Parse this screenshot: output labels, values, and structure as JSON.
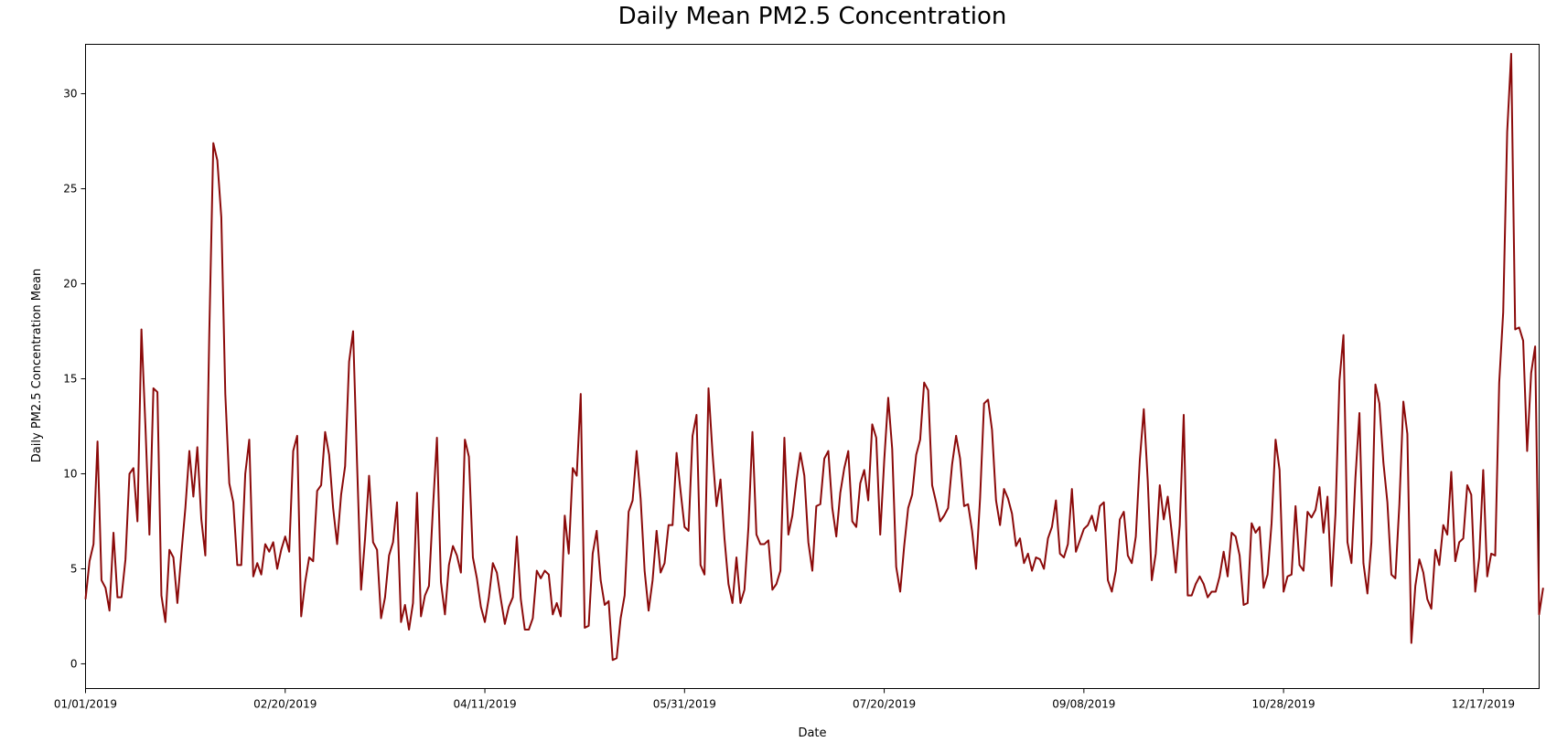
{
  "chart_data": {
    "type": "line",
    "title": "Daily Mean PM2.5 Concentration",
    "xlabel": "Date",
    "ylabel": "Daily PM2.5 Concentration Mean",
    "x_start": "01/01/2019",
    "x_end": "12/31/2019",
    "xlim": [
      "01/01/2019",
      "12/31/2019"
    ],
    "ylim": [
      -1.3,
      32.6
    ],
    "x_ticks": [
      "01/01/2019",
      "02/20/2019",
      "04/11/2019",
      "05/31/2019",
      "07/20/2019",
      "09/08/2019",
      "10/28/2019",
      "12/17/2019"
    ],
    "y_ticks": [
      0,
      5,
      10,
      15,
      20,
      25,
      30
    ],
    "grid": false,
    "line_color": "#8b0a0a",
    "series": [
      {
        "values": [
          3.4,
          5.4,
          6.3,
          11.7,
          4.4,
          4.0,
          2.8,
          6.9,
          3.5,
          3.5,
          5.5,
          10.0,
          10.3,
          7.5,
          17.6,
          12.5,
          6.8,
          14.5,
          14.3,
          3.6,
          2.2,
          6.0,
          5.6,
          3.2,
          5.8,
          8.2,
          11.2,
          8.8,
          11.4,
          7.6,
          5.7,
          17.5,
          27.4,
          26.5,
          23.5,
          14.2,
          9.5,
          8.5,
          5.2,
          5.2,
          10.0,
          11.8,
          4.6,
          5.3,
          4.7,
          6.3,
          5.9,
          6.4,
          5.0,
          6.0,
          6.7,
          5.9,
          11.2,
          12.0,
          2.5,
          4.3,
          5.6,
          5.4,
          9.1,
          9.4,
          12.2,
          11.0,
          8.2,
          6.3,
          8.9,
          10.4,
          15.9,
          17.5,
          10.5,
          3.9,
          6.6,
          9.9,
          6.4,
          6.0,
          2.4,
          3.5,
          5.7,
          6.4,
          8.5,
          2.2,
          3.1,
          1.8,
          3.2,
          9.0,
          2.5,
          3.6,
          4.1,
          8.2,
          11.9,
          4.3,
          2.6,
          5.2,
          6.2,
          5.7,
          4.8,
          11.8,
          10.9,
          5.6,
          4.5,
          3.0,
          2.2,
          3.5,
          5.3,
          4.8,
          3.4,
          2.1,
          3.0,
          3.5,
          6.7,
          3.4,
          1.8,
          1.8,
          2.4,
          4.9,
          4.5,
          4.9,
          4.7,
          2.6,
          3.2,
          2.5,
          7.8,
          5.8,
          10.3,
          9.9,
          14.2,
          1.9,
          2.0,
          5.8,
          7.0,
          4.4,
          3.1,
          3.3,
          0.2,
          0.3,
          2.4,
          3.6,
          8.0,
          8.6,
          11.2,
          8.7,
          4.9,
          2.8,
          4.4,
          7.0,
          4.8,
          5.3,
          7.3,
          7.3,
          11.1,
          9.1,
          7.2,
          7.0,
          12.0,
          13.1,
          5.2,
          4.7,
          14.5,
          11.1,
          8.3,
          9.7,
          6.6,
          4.2,
          3.2,
          5.6,
          3.2,
          3.9,
          7.2,
          12.2,
          6.8,
          6.3,
          6.3,
          6.5,
          3.9,
          4.2,
          4.9,
          11.9,
          6.8,
          7.8,
          9.6,
          11.1,
          9.9,
          6.4,
          4.9,
          8.3,
          8.4,
          10.8,
          11.2,
          8.2,
          6.7,
          9.0,
          10.3,
          11.2,
          7.5,
          7.2,
          9.5,
          10.2,
          8.6,
          12.6,
          11.9,
          6.8,
          10.7,
          14.0,
          11.3,
          5.1,
          3.8,
          6.2,
          8.2,
          8.9,
          11.0,
          11.8,
          14.8,
          14.4,
          9.4,
          8.5,
          7.5,
          7.8,
          8.2,
          10.5,
          12.0,
          10.8,
          8.3,
          8.4,
          7.0,
          5.0,
          8.7,
          13.7,
          13.9,
          12.3,
          8.6,
          7.3,
          9.2,
          8.7,
          7.9,
          6.2,
          6.6,
          5.3,
          5.8,
          4.9,
          5.6,
          5.5,
          5.0,
          6.6,
          7.2,
          8.6,
          5.8,
          5.6,
          6.3,
          9.2,
          5.9,
          6.5,
          7.1,
          7.3,
          7.8,
          7.0,
          8.3,
          8.5,
          4.4,
          3.8,
          4.9,
          7.6,
          8.0,
          5.7,
          5.3,
          6.7,
          10.7,
          13.4,
          9.6,
          4.4,
          5.8,
          9.4,
          7.6,
          8.8,
          6.9,
          4.8,
          7.3,
          13.1,
          3.6,
          3.6,
          4.2,
          4.6,
          4.2,
          3.5,
          3.8,
          3.8,
          4.6,
          5.9,
          4.6,
          6.9,
          6.7,
          5.7,
          3.1,
          3.2,
          7.4,
          6.9,
          7.2,
          4.0,
          4.7,
          7.4,
          11.8,
          10.2,
          3.8,
          4.6,
          4.7,
          8.3,
          5.2,
          4.9,
          8.0,
          7.7,
          8.1,
          9.3,
          6.9,
          8.8,
          4.1,
          7.9,
          14.9,
          17.3,
          6.4,
          5.3,
          9.8,
          13.2,
          5.3,
          3.7,
          6.4,
          14.7,
          13.7,
          10.6,
          8.5,
          4.7,
          4.5,
          8.4,
          13.8,
          12.1,
          1.1,
          4.1,
          5.5,
          4.8,
          3.4,
          2.9,
          6.0,
          5.2,
          7.3,
          6.8,
          10.1,
          5.4,
          6.4,
          6.6,
          9.4,
          8.9,
          3.8,
          5.6,
          10.2,
          4.6,
          5.8,
          5.7,
          14.8,
          18.5,
          28.0,
          32.1,
          17.6,
          17.7,
          17.0,
          11.2,
          15.3,
          16.7,
          2.6,
          4.0
        ]
      }
    ]
  }
}
